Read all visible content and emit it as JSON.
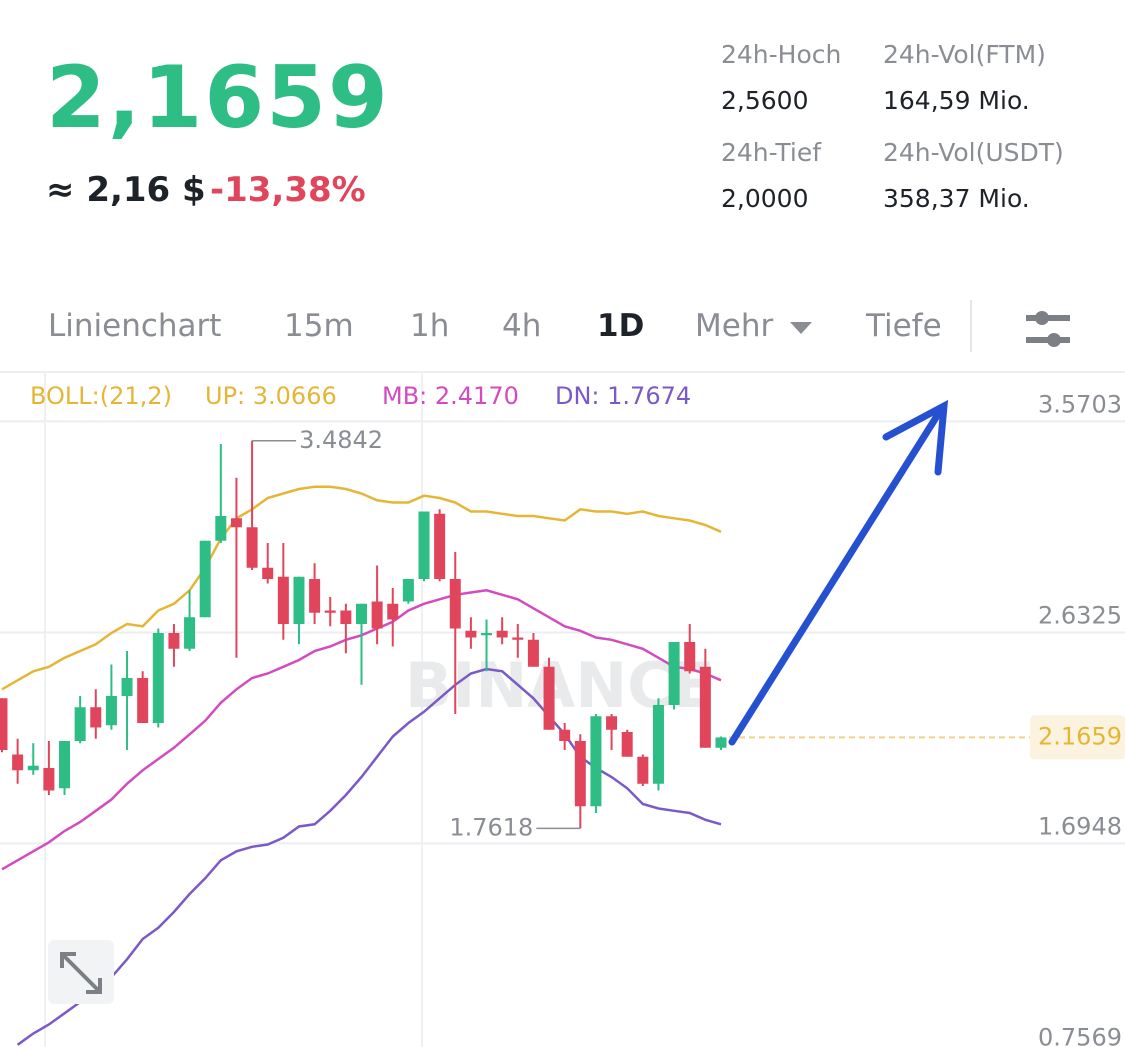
{
  "header": {
    "price": "2,1659",
    "usd": "≈ 2,16 $",
    "change": "-13,38%"
  },
  "stats": [
    {
      "label": "24h-Hoch",
      "value": "2,5600"
    },
    {
      "label": "24h-Vol(FTM)",
      "value": "164,59 Mio."
    },
    {
      "label": "24h-Tief",
      "value": "2,0000"
    },
    {
      "label": "24h-Vol(USDT)",
      "value": "358,37 Mio."
    }
  ],
  "tabs": [
    "Linienchart",
    "15m",
    "1h",
    "4h",
    "1D",
    "Mehr",
    "Tiefe"
  ],
  "chart_data": {
    "type": "candlestick",
    "legend": [
      {
        "text": "BOLL:(21,2)",
        "color": "#e5b636"
      },
      {
        "text": "UP: 3.0666",
        "color": "#e5b636"
      },
      {
        "text": "MB: 2.4170",
        "color": "#d24cc0"
      },
      {
        "text": "DN: 1.7674",
        "color": "#7a5ac6"
      }
    ],
    "up_color": "#2ebd85",
    "down_color": "#e0455b",
    "open": [
      2.34,
      2.09,
      2.02,
      2.03,
      1.94,
      2.15,
      2.3,
      2.22,
      2.35,
      2.43,
      2.23,
      2.63,
      2.56,
      2.7,
      3.04,
      3.14,
      3.1,
      2.92,
      2.88,
      2.67,
      2.87,
      2.73,
      2.73,
      2.67,
      2.77,
      2.76,
      2.77,
      2.87,
      3.16,
      2.87,
      2.64,
      2.62,
      2.64,
      2.61,
      2.6,
      2.48,
      2.2,
      2.15,
      1.86,
      2.26,
      2.19,
      2.08,
      1.96,
      2.31,
      2.59,
      2.48,
      2.12
    ],
    "high": [
      2.34,
      2.16,
      2.14,
      2.15,
      2.15,
      2.35,
      2.38,
      2.49,
      2.55,
      2.46,
      2.65,
      2.67,
      2.82,
      3.04,
      3.47,
      3.32,
      3.4842,
      3.03,
      3.03,
      2.88,
      2.94,
      2.79,
      2.76,
      2.76,
      2.93,
      2.83,
      2.87,
      3.17,
      3.18,
      2.99,
      2.7,
      2.69,
      2.7,
      2.67,
      2.63,
      2.52,
      2.23,
      2.18,
      2.27,
      2.27,
      2.2,
      2.09,
      2.34,
      2.59,
      2.67,
      2.56,
      2.17
    ],
    "low": [
      2.1,
      1.96,
      2.0,
      1.91,
      1.91,
      2.14,
      2.16,
      2.2,
      2.11,
      2.23,
      2.21,
      2.48,
      2.55,
      2.7,
      3.03,
      2.52,
      2.91,
      2.85,
      2.6,
      2.58,
      2.67,
      2.66,
      2.54,
      2.4,
      2.58,
      2.57,
      2.76,
      2.86,
      2.86,
      2.27,
      2.56,
      2.46,
      2.58,
      2.52,
      2.48,
      2.2,
      2.11,
      1.7618,
      1.83,
      2.11,
      2.08,
      1.95,
      1.93,
      2.29,
      2.45,
      2.12,
      2.11
    ],
    "close": [
      2.11,
      2.02,
      2.04,
      1.93,
      2.15,
      2.3,
      2.21,
      2.35,
      2.43,
      2.23,
      2.63,
      2.56,
      2.7,
      3.04,
      3.15,
      3.1,
      2.92,
      2.87,
      2.67,
      2.88,
      2.72,
      2.72,
      2.67,
      2.76,
      2.65,
      2.69,
      2.87,
      3.17,
      2.87,
      2.65,
      2.61,
      2.63,
      2.61,
      2.6,
      2.48,
      2.2,
      2.15,
      1.86,
      2.26,
      2.2,
      2.08,
      1.96,
      2.31,
      2.59,
      2.46,
      2.12,
      2.1659
    ],
    "lines": [
      {
        "color": "#e5b636",
        "values": [
          2.38,
          2.42,
          2.46,
          2.48,
          2.52,
          2.55,
          2.58,
          2.63,
          2.67,
          2.66,
          2.73,
          2.76,
          2.82,
          2.92,
          3.05,
          3.14,
          3.18,
          3.23,
          3.25,
          3.27,
          3.28,
          3.28,
          3.27,
          3.25,
          3.22,
          3.21,
          3.21,
          3.24,
          3.23,
          3.21,
          3.17,
          3.17,
          3.16,
          3.15,
          3.15,
          3.14,
          3.13,
          3.18,
          3.17,
          3.17,
          3.16,
          3.17,
          3.15,
          3.14,
          3.13,
          3.11,
          3.08
        ]
      },
      {
        "color": "#d24cc0",
        "values": [
          1.58,
          1.62,
          1.66,
          1.7,
          1.75,
          1.79,
          1.84,
          1.89,
          1.96,
          2.02,
          2.07,
          2.12,
          2.18,
          2.24,
          2.32,
          2.38,
          2.43,
          2.45,
          2.48,
          2.51,
          2.55,
          2.57,
          2.6,
          2.62,
          2.65,
          2.68,
          2.73,
          2.76,
          2.78,
          2.8,
          2.81,
          2.82,
          2.8,
          2.78,
          2.74,
          2.7,
          2.66,
          2.64,
          2.61,
          2.6,
          2.58,
          2.56,
          2.52,
          2.48,
          2.47,
          2.45,
          2.42
        ]
      },
      {
        "color": "#7a5ac6",
        "values": [
          null,
          0.8,
          0.85,
          0.89,
          0.94,
          0.99,
          1.04,
          1.1,
          1.18,
          1.27,
          1.32,
          1.39,
          1.47,
          1.54,
          1.62,
          1.66,
          1.68,
          1.69,
          1.72,
          1.77,
          1.78,
          1.84,
          1.91,
          1.99,
          2.08,
          2.17,
          2.23,
          2.28,
          2.34,
          2.4,
          2.45,
          2.47,
          2.46,
          2.4,
          2.34,
          2.26,
          2.18,
          2.08,
          2.03,
          1.99,
          1.94,
          1.87,
          1.85,
          1.84,
          1.83,
          1.8,
          1.78
        ]
      }
    ],
    "ylim": [
      0.79,
      3.79
    ],
    "yticks": [
      3.5703,
      2.6325,
      1.6948,
      0.7569
    ],
    "grid": true,
    "high_label": "3.4842",
    "low_label": "1.7618",
    "last_price_label": "2.1659",
    "watermark": "BINANCE"
  }
}
